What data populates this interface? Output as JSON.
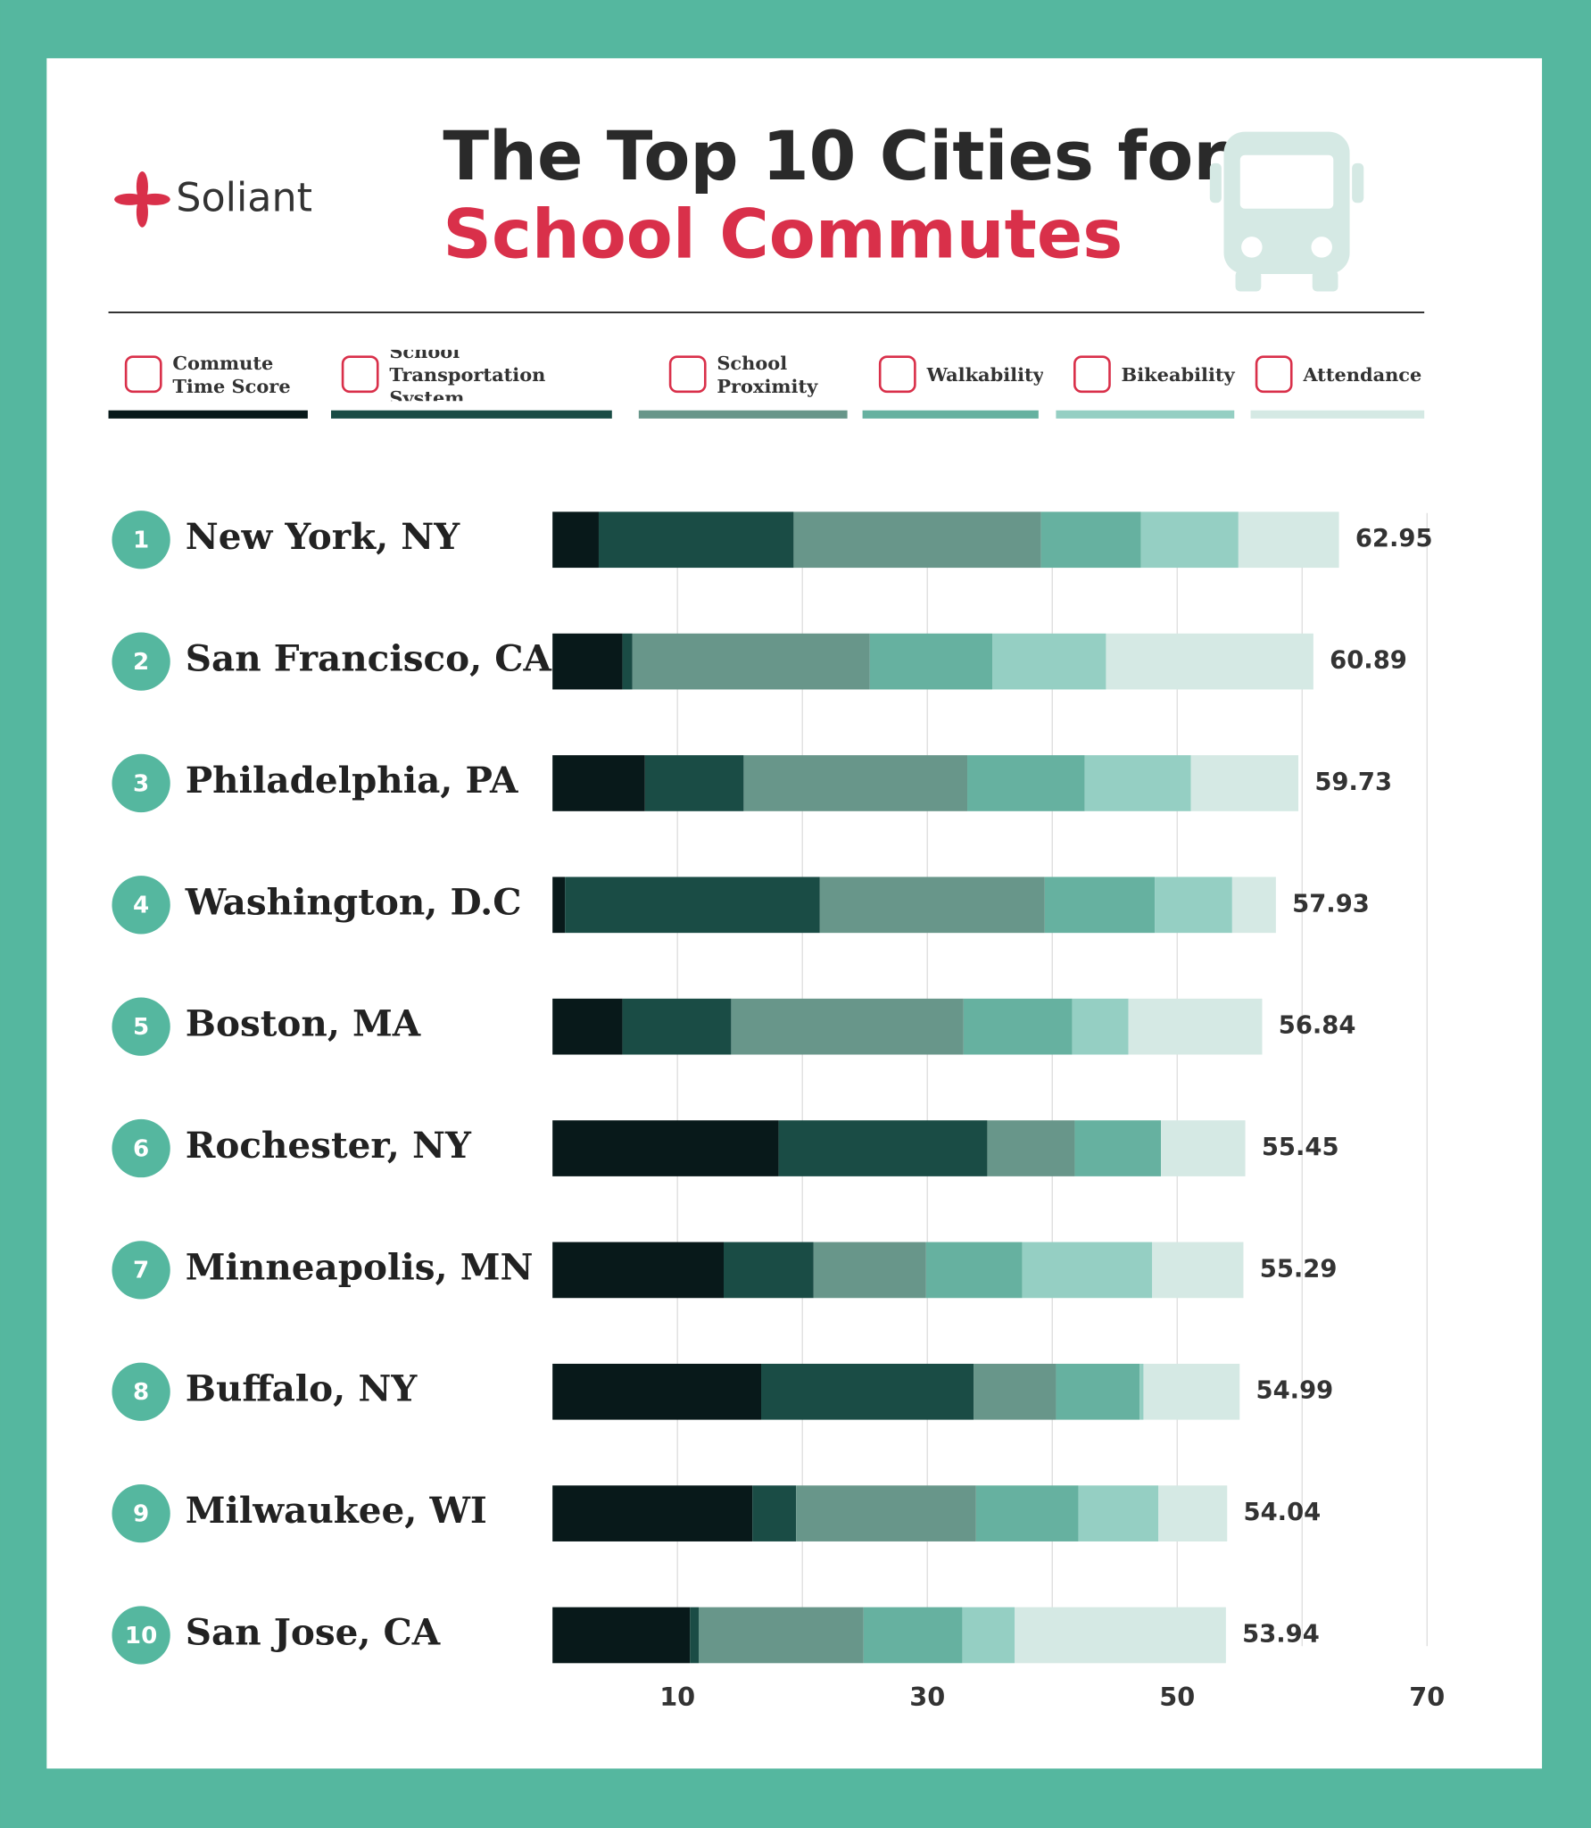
{
  "logo": "Soliant",
  "chart_data": {
    "type": "stacked-bar-horizontal",
    "title": [
      "The Top 10 Cities for",
      "School Commutes"
    ],
    "ranks": [
      1,
      2,
      3,
      4,
      5,
      6,
      7,
      8,
      9,
      10
    ],
    "categories": [
      "New York, NY",
      "San Francisco, CA",
      "Philadelphia, PA",
      "Washington, D.C",
      "Boston, MA",
      "Rochester, NY",
      "Minneapolis, MN",
      "Buffalo, NY",
      "Milwaukee, WI",
      "San Jose, CA"
    ],
    "series": [
      {
        "name": "Commute Time Score",
        "color": "#08191a",
        "values": [
          3.7,
          5.6,
          7.4,
          1.0,
          5.6,
          18.1,
          13.7,
          16.7,
          16.0,
          11.0
        ]
      },
      {
        "name": "School Transportation System",
        "color": "#1a4c45",
        "values": [
          15.6,
          0.8,
          7.9,
          20.4,
          8.7,
          16.7,
          7.2,
          17.0,
          3.5,
          0.7
        ]
      },
      {
        "name": "School Proximity",
        "color": "#68968a",
        "values": [
          19.8,
          19.0,
          17.9,
          18.0,
          18.6,
          7.0,
          9.0,
          6.6,
          14.4,
          13.2
        ]
      },
      {
        "name": "Walkability",
        "color": "#66b1a0",
        "values": [
          8.0,
          9.8,
          9.4,
          8.8,
          8.7,
          6.9,
          7.7,
          6.7,
          8.2,
          7.9
        ]
      },
      {
        "name": "Bikeability",
        "color": "#95cfc3",
        "values": [
          7.8,
          9.1,
          8.5,
          6.2,
          4.5,
          0,
          10.4,
          0.3,
          6.4,
          4.2
        ]
      },
      {
        "name": "Attendance",
        "color": "#d5e9e4",
        "values": [
          8.05,
          16.6,
          8.6,
          3.5,
          10.7,
          6.75,
          7.3,
          7.7,
          5.5,
          16.9
        ]
      }
    ],
    "totals": [
      62.95,
      60.89,
      59.73,
      57.93,
      56.84,
      55.45,
      55.29,
      54.99,
      54.04,
      53.94
    ],
    "xlim": [
      0,
      70
    ],
    "xticks": [
      10,
      30,
      50,
      70
    ],
    "minor_xticks": [
      20,
      40,
      60
    ],
    "grid": true
  }
}
